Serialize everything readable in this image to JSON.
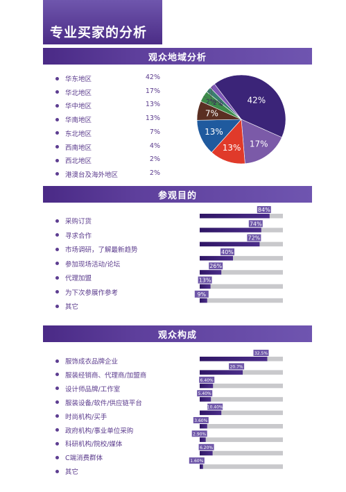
{
  "page_title": "专业买家的分析",
  "colors": {
    "purple_dark": "#3a1f78",
    "purple_label": "#6e56a8",
    "track_gray": "#c9c9cc"
  },
  "chart_data": [
    {
      "type": "pie",
      "title": "观众地域分析",
      "categories": [
        "华东地区",
        "华北地区",
        "华中地区",
        "华南地区",
        "东北地区",
        "西南地区",
        "西北地区",
        "港澳台及海外地区"
      ],
      "values": [
        42,
        17,
        13,
        13,
        7,
        4,
        2,
        2
      ],
      "value_labels": [
        "42%",
        "17%",
        "13%",
        "13%",
        "7%",
        "4%",
        "2%",
        "2%"
      ],
      "colors": [
        "#3b2478",
        "#7b5aa8",
        "#e03a2a",
        "#1f5a9e",
        "#5a2f22",
        "#3c8c4a",
        "#3b7f70",
        "#7e56b5"
      ]
    },
    {
      "type": "bar",
      "title": "参观目的",
      "categories": [
        "采购订货",
        "寻求合作",
        "市场调研，了解最新趋势",
        "参加现场活动/论坛",
        "代理加盟",
        "为下次参展作参考",
        "其它"
      ],
      "values": [
        84,
        74,
        72,
        40,
        26,
        13,
        9
      ],
      "value_labels": [
        "84%",
        "74%",
        "72%",
        "40%",
        "26%",
        "13%",
        "9%"
      ],
      "ylim": [
        0,
        100
      ]
    },
    {
      "type": "bar",
      "title": "观众构成",
      "categories": [
        "服饰成衣品牌企业",
        "服装经销商、代理商/加盟商",
        "设计师品牌/工作室",
        "服装设备/软件/供应链平台",
        "时尚机构/买手",
        "政府机构/事业单位采购",
        "科研机构/院校/媒体",
        "C端消费群体",
        "其它"
      ],
      "values": [
        32.5,
        20.7,
        6.4,
        5.4,
        10.4,
        3.6,
        2.9,
        6.2,
        1.6
      ],
      "value_labels": [
        "32.5%",
        "20.7%",
        "6.40%",
        "5.40%",
        "10.40%",
        "3.60%",
        "2.90%",
        "6.20%",
        "1.60%"
      ],
      "ylim": [
        0,
        40
      ]
    }
  ]
}
